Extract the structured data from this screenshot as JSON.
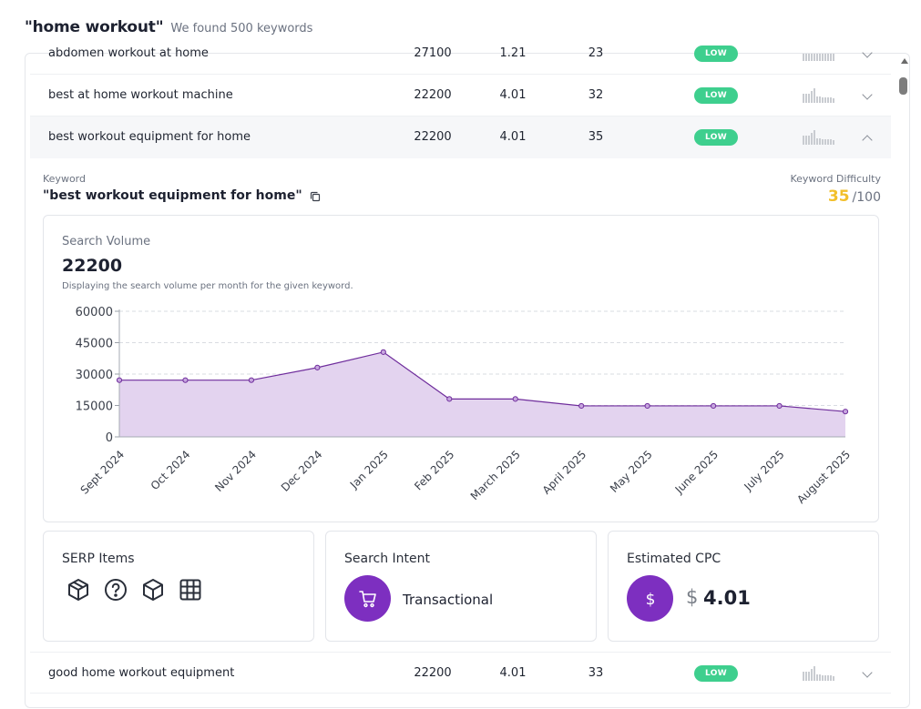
{
  "header": {
    "query": "\"home workout\"",
    "found": "We found 500 keywords"
  },
  "rows_top": [
    {
      "keyword": "abdomen workout at home",
      "volume": "27100",
      "cpc": "1.21",
      "kd": "23",
      "competition": "LOW"
    },
    {
      "keyword": "best at home workout machine",
      "volume": "22200",
      "cpc": "4.01",
      "kd": "32",
      "competition": "LOW"
    },
    {
      "keyword": "best workout equipment for home",
      "volume": "22200",
      "cpc": "4.01",
      "kd": "35",
      "competition": "LOW"
    }
  ],
  "detail": {
    "keyword_label": "Keyword",
    "keyword_title": "\"best workout equipment for home\"",
    "kd_label": "Keyword Difficulty",
    "kd_score": "35",
    "kd_max": "/100",
    "search_volume": {
      "label": "Search Volume",
      "value": "22200",
      "description": "Displaying the search volume per month for the given keyword."
    },
    "serp": {
      "title": "SERP Items",
      "icons": [
        "package-icon",
        "help-circle-icon",
        "box-icon",
        "grid-icon"
      ]
    },
    "intent": {
      "title": "Search Intent",
      "label": "Transactional",
      "icon": "shopping-cart-icon"
    },
    "cpc": {
      "title": "Estimated CPC",
      "currency": "$",
      "value": "4.01",
      "icon": "dollar-icon"
    }
  },
  "rows_bottom": [
    {
      "keyword": "good home workout equipment",
      "volume": "22200",
      "cpc": "4.01",
      "kd": "33",
      "competition": "LOW"
    }
  ],
  "colors": {
    "accent": "#7d2fc0",
    "low_badge": "#3ecf8e",
    "kd_score": "#f2bf2b",
    "area_fill": "#e3d3ef",
    "line": "#6f2d9c"
  },
  "chart_data": {
    "type": "area",
    "x": [
      "Sept 2024",
      "Oct 2024",
      "Nov 2024",
      "Dec 2024",
      "Jan 2025",
      "Feb 2025",
      "March 2025",
      "April 2025",
      "May 2025",
      "June 2025",
      "July 2025",
      "August 2025"
    ],
    "values": [
      27100,
      27100,
      27100,
      33100,
      40500,
      18100,
      18100,
      14800,
      14800,
      14800,
      14800,
      12100
    ],
    "yticks": [
      0,
      15000,
      30000,
      45000,
      60000
    ],
    "ylim": [
      0,
      60000
    ],
    "grid": true
  }
}
